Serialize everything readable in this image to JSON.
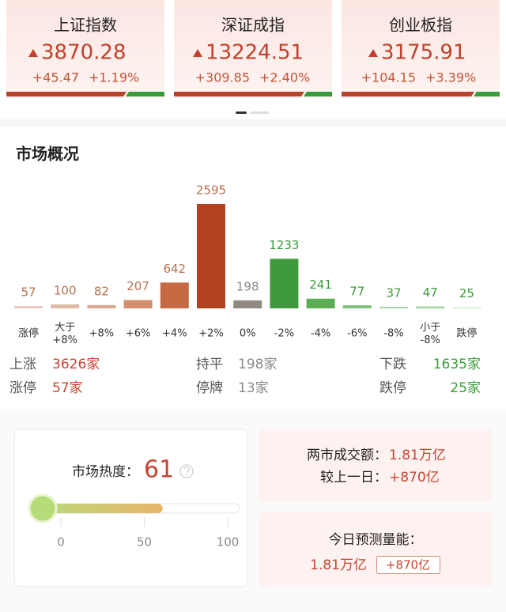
{
  "indices": [
    {
      "name": "上证指数",
      "value": "3870.28",
      "change": "+45.47",
      "change_pct": "+1.19%"
    },
    {
      "name": "深证成指",
      "value": "13224.51",
      "change": "+309.85",
      "change_pct": "+2.40%"
    },
    {
      "name": "创业板指",
      "value": "3175.91",
      "change": "+104.15",
      "change_pct": "+3.39%"
    }
  ],
  "market_overview": {
    "title": "市场概况",
    "chart_data": {
      "type": "bar",
      "categories": [
        "涨停",
        "大于\n+8%",
        "+8%",
        "+6%",
        "+4%",
        "+2%",
        "0%",
        "-2%",
        "-4%",
        "-6%",
        "-8%",
        "小于\n-8%",
        "跌停"
      ],
      "values": [
        57,
        100,
        82,
        207,
        642,
        2595,
        198,
        1233,
        241,
        77,
        37,
        47,
        25
      ],
      "colors": [
        "#e6cbbd",
        "#dfbaa5",
        "#d8ab91",
        "#d18f6e",
        "#c56a43",
        "#b3421f",
        "#8e8a80",
        "#3f9a3e",
        "#5cae54",
        "#80c17a",
        "#a4d29d",
        "#a4d29d",
        "#c4e2bf"
      ],
      "value_label_colors": [
        "#b7714f",
        "#b7714f",
        "#b7714f",
        "#b7714f",
        "#b7714f",
        "#b7714f",
        "#8a8a8a",
        "#3a9b3a",
        "#3a9b3a",
        "#3a9b3a",
        "#3a9b3a",
        "#3a9b3a",
        "#3a9b3a"
      ]
    },
    "summary": [
      [
        {
          "label": "上涨",
          "value": "3626家"
        },
        {
          "label": "持平",
          "value": "198家"
        },
        {
          "label": "下跌",
          "value": "1635家"
        }
      ],
      [
        {
          "label": "涨停",
          "value": "57家"
        },
        {
          "label": "停牌",
          "value": "13家"
        },
        {
          "label": "跌停",
          "value": "25家"
        }
      ]
    ]
  },
  "heat": {
    "label": "市场热度：",
    "value": 61,
    "xlim": [
      0,
      100
    ],
    "xticks": [
      0,
      50,
      100
    ]
  },
  "turnover": {
    "label": "两市成交额：",
    "value": "1.81万亿",
    "change_label": "较上一日：",
    "change": "+870亿"
  },
  "forecast": {
    "label": "今日预测量能：",
    "value": "1.81万亿",
    "change": "+870亿"
  }
}
